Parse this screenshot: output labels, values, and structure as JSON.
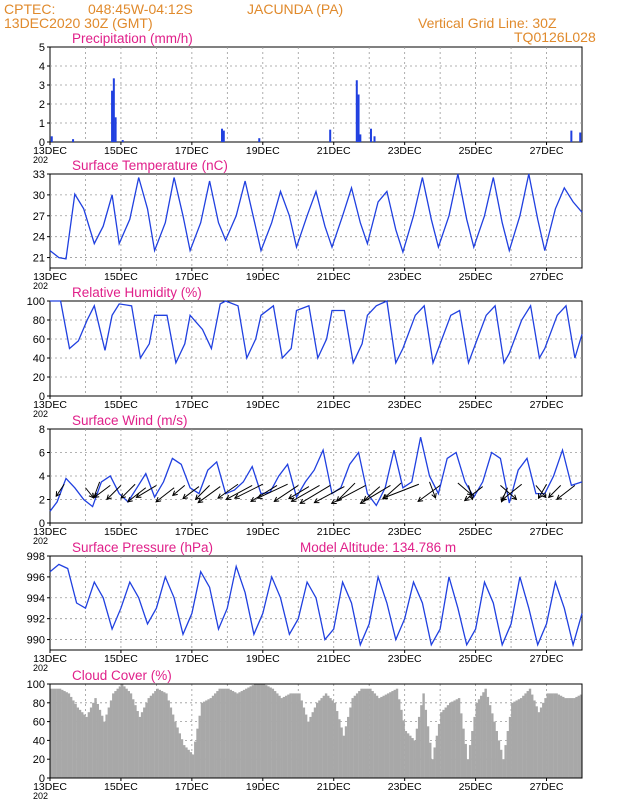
{
  "header": {
    "source": "CPTEC:",
    "coords": "048:45W-04:12S",
    "location": "JACUNDA (PA)",
    "run": "13DEC2020 30Z (GMT)",
    "grid_line": "Vertical Grid Line: 30Z",
    "code": "TQ0126L028"
  },
  "colors": {
    "header": "#e08a2c",
    "title": "#e0208a",
    "line": "#2040e0",
    "bar": "#2040e0",
    "cloud": "#a8a8a8"
  },
  "x_ticks": [
    "13DEC",
    "15DEC",
    "17DEC",
    "19DEC",
    "21DEC",
    "23DEC",
    "25DEC",
    "27DEC"
  ],
  "x_range_days": [
    13,
    28
  ],
  "chart_data": [
    {
      "type": "bar",
      "title": "Precipitation (mm/h)",
      "ylim": [
        0,
        5
      ],
      "yticks": [
        0,
        1,
        2,
        3,
        4,
        5
      ],
      "x": [
        13.05,
        13.65,
        14.75,
        14.8,
        14.85,
        15.05,
        17.85,
        17.9,
        18.9,
        20.9,
        21.65,
        21.7,
        21.75,
        22.05,
        22.15,
        27.7,
        27.95
      ],
      "values": [
        0.3,
        0.15,
        2.7,
        3.35,
        1.3,
        0.1,
        0.7,
        0.6,
        0.2,
        0.65,
        3.25,
        2.5,
        0.4,
        0.7,
        0.3,
        0.6,
        0.5
      ]
    },
    {
      "type": "line",
      "title": "Surface Temperature (nC)",
      "ylim": [
        19.5,
        33
      ],
      "yticks": [
        21,
        24,
        27,
        30,
        33
      ],
      "x": [
        13.0,
        13.25,
        13.45,
        13.7,
        13.95,
        14.25,
        14.5,
        14.75,
        14.95,
        15.25,
        15.5,
        15.75,
        15.95,
        16.25,
        16.5,
        16.75,
        16.95,
        17.25,
        17.5,
        17.75,
        17.95,
        18.25,
        18.5,
        18.75,
        18.95,
        19.25,
        19.5,
        19.75,
        19.95,
        20.25,
        20.5,
        20.75,
        20.95,
        21.25,
        21.5,
        21.75,
        21.95,
        22.25,
        22.5,
        22.75,
        22.95,
        23.25,
        23.5,
        23.75,
        23.95,
        24.25,
        24.5,
        24.75,
        24.95,
        25.25,
        25.5,
        25.75,
        25.95,
        26.25,
        26.5,
        26.75,
        26.95,
        27.25,
        27.5,
        27.75,
        28.0
      ],
      "values": [
        22.0,
        21.0,
        20.8,
        30.1,
        28.0,
        23.0,
        25.5,
        30.0,
        23.0,
        26.5,
        32.5,
        28.0,
        22.0,
        26.0,
        32.5,
        27.0,
        22.0,
        26.0,
        32.0,
        26.0,
        23.5,
        27.0,
        32.0,
        26.5,
        22.0,
        26.0,
        30.5,
        27.0,
        22.5,
        27.0,
        30.5,
        25.5,
        22.5,
        27.0,
        31.0,
        26.0,
        23.0,
        29.0,
        30.5,
        25.0,
        21.8,
        27.0,
        32.5,
        26.5,
        22.5,
        27.0,
        33.0,
        26.5,
        22.5,
        27.0,
        32.5,
        26.0,
        22.0,
        27.0,
        33.0,
        26.5,
        22.0,
        28.0,
        31.0,
        29.0,
        27.5
      ]
    },
    {
      "type": "line",
      "title": "Relative Humidity (%)",
      "ylim": [
        0,
        100
      ],
      "yticks": [
        0,
        20,
        40,
        60,
        80,
        100
      ],
      "x": [
        13.0,
        13.3,
        13.55,
        13.8,
        14.05,
        14.25,
        14.55,
        14.75,
        14.95,
        15.3,
        15.55,
        15.8,
        15.95,
        16.3,
        16.55,
        16.8,
        16.95,
        17.3,
        17.55,
        17.8,
        17.95,
        18.3,
        18.55,
        18.8,
        18.95,
        19.3,
        19.55,
        19.8,
        19.95,
        20.3,
        20.55,
        20.8,
        20.95,
        21.3,
        21.55,
        21.8,
        21.95,
        22.2,
        22.5,
        22.75,
        22.95,
        23.3,
        23.55,
        23.8,
        23.95,
        24.3,
        24.55,
        24.8,
        24.95,
        25.3,
        25.55,
        25.8,
        25.95,
        26.3,
        26.55,
        26.8,
        26.95,
        27.3,
        27.55,
        27.8,
        28.0
      ],
      "values": [
        100,
        100,
        50,
        58,
        80,
        95,
        48,
        85,
        97,
        95,
        40,
        55,
        85,
        85,
        35,
        55,
        85,
        70,
        50,
        97,
        100,
        95,
        40,
        60,
        85,
        95,
        40,
        50,
        90,
        95,
        40,
        60,
        90,
        90,
        35,
        55,
        85,
        95,
        100,
        35,
        50,
        85,
        95,
        35,
        50,
        85,
        90,
        35,
        50,
        85,
        95,
        35,
        45,
        80,
        95,
        40,
        50,
        85,
        95,
        40,
        65
      ]
    },
    {
      "type": "line",
      "title": "Surface Wind (m/s)",
      "ylim": [
        0,
        8
      ],
      "yticks": [
        0,
        2,
        4,
        6,
        8
      ],
      "x": [
        13.0,
        13.2,
        13.45,
        13.7,
        13.95,
        14.2,
        14.45,
        14.7,
        14.95,
        15.2,
        15.45,
        15.7,
        15.95,
        16.2,
        16.45,
        16.7,
        16.95,
        17.2,
        17.45,
        17.7,
        17.95,
        18.2,
        18.45,
        18.7,
        18.95,
        19.2,
        19.45,
        19.7,
        19.95,
        20.2,
        20.45,
        20.7,
        20.95,
        21.2,
        21.45,
        21.7,
        21.95,
        22.2,
        22.45,
        22.7,
        22.95,
        23.2,
        23.45,
        23.7,
        23.95,
        24.2,
        24.45,
        24.7,
        24.95,
        25.2,
        25.45,
        25.7,
        25.95,
        26.2,
        26.45,
        26.7,
        26.95,
        27.2,
        27.45,
        27.7,
        28.0
      ],
      "values": [
        1.0,
        1.8,
        3.8,
        3.0,
        2.0,
        1.4,
        3.5,
        4.0,
        2.5,
        1.8,
        3.0,
        4.2,
        2.2,
        3.5,
        5.5,
        5.0,
        3.0,
        2.5,
        4.5,
        5.2,
        2.5,
        2.8,
        3.5,
        4.8,
        2.5,
        2.6,
        4.0,
        5.0,
        2.2,
        3.5,
        4.5,
        6.2,
        2.5,
        3.0,
        5.0,
        6.0,
        2.5,
        1.5,
        3.0,
        6.2,
        3.0,
        3.5,
        7.3,
        4.0,
        2.5,
        5.5,
        6.0,
        3.5,
        2.2,
        3.5,
        6.0,
        5.5,
        1.7,
        4.5,
        5.5,
        2.5,
        2.5,
        4.0,
        6.2,
        3.2,
        3.5
      ]
    },
    {
      "type": "line",
      "title": "Surface Pressure (hPa)",
      "annotation": "Model Altitude: 134.786 m",
      "ylim": [
        989,
        998
      ],
      "yticks": [
        990,
        992,
        994,
        996,
        998
      ],
      "x": [
        13.0,
        13.25,
        13.5,
        13.75,
        14.0,
        14.25,
        14.5,
        14.75,
        15.0,
        15.25,
        15.5,
        15.75,
        16.0,
        16.25,
        16.5,
        16.75,
        17.0,
        17.25,
        17.5,
        17.75,
        18.0,
        18.25,
        18.5,
        18.75,
        19.0,
        19.25,
        19.5,
        19.75,
        20.0,
        20.25,
        20.5,
        20.75,
        21.0,
        21.25,
        21.5,
        21.75,
        22.0,
        22.25,
        22.5,
        22.75,
        23.0,
        23.25,
        23.5,
        23.75,
        24.0,
        24.25,
        24.5,
        24.75,
        25.0,
        25.25,
        25.5,
        25.75,
        26.0,
        26.25,
        26.5,
        26.75,
        27.0,
        27.25,
        27.5,
        27.75,
        28.0
      ],
      "values": [
        996.5,
        997.2,
        996.8,
        993.5,
        993.0,
        995.5,
        994.0,
        991.0,
        993.0,
        995.5,
        994.0,
        991.5,
        993.0,
        996.0,
        994.0,
        990.5,
        992.5,
        996.5,
        995.0,
        991.0,
        993.0,
        997.0,
        994.5,
        990.5,
        992.5,
        996.0,
        994.0,
        990.5,
        992.0,
        995.5,
        994.0,
        990.0,
        991.0,
        995.5,
        993.5,
        989.5,
        991.5,
        996.0,
        993.5,
        990.0,
        992.0,
        995.5,
        993.5,
        989.5,
        991.0,
        996.0,
        993.0,
        989.5,
        991.0,
        995.5,
        993.5,
        989.5,
        991.5,
        996.0,
        993.0,
        989.5,
        991.5,
        995.5,
        993.0,
        989.5,
        992.5
      ]
    },
    {
      "type": "area",
      "title": "Cloud Cover (%)",
      "ylim": [
        0,
        100
      ],
      "yticks": [
        0,
        20,
        40,
        60,
        80,
        100
      ],
      "x": [
        13.0,
        13.25,
        13.5,
        13.75,
        14.0,
        14.25,
        14.5,
        14.75,
        15.0,
        15.25,
        15.5,
        15.75,
        16.0,
        16.25,
        16.5,
        16.75,
        17.0,
        17.25,
        17.5,
        17.75,
        18.0,
        18.25,
        18.5,
        18.75,
        19.0,
        19.25,
        19.5,
        19.75,
        20.0,
        20.25,
        20.5,
        20.75,
        21.0,
        21.25,
        21.5,
        21.75,
        22.0,
        22.25,
        22.5,
        22.75,
        23.0,
        23.25,
        23.5,
        23.75,
        24.0,
        24.25,
        24.5,
        24.75,
        25.0,
        25.25,
        25.5,
        25.75,
        26.0,
        26.25,
        26.5,
        26.75,
        27.0,
        27.25,
        27.5,
        27.75,
        28.0
      ],
      "values": [
        95,
        95,
        90,
        75,
        65,
        85,
        60,
        90,
        100,
        90,
        65,
        85,
        95,
        90,
        60,
        35,
        25,
        80,
        85,
        95,
        95,
        90,
        95,
        100,
        100,
        95,
        85,
        90,
        90,
        60,
        80,
        90,
        80,
        45,
        85,
        95,
        95,
        85,
        90,
        95,
        50,
        40,
        90,
        20,
        70,
        80,
        85,
        20,
        80,
        95,
        60,
        20,
        80,
        85,
        95,
        70,
        90,
        90,
        85,
        85,
        90
      ]
    }
  ],
  "wind_vectors": {
    "x": [
      13.4,
      14.0,
      14.4,
      14.7,
      15.0,
      15.4,
      15.7,
      16.0,
      16.5,
      16.8,
      17.2,
      17.5,
      17.8,
      18.3,
      18.7,
      19.0,
      19.4,
      19.7,
      20.0,
      20.3,
      20.6,
      20.9,
      21.3,
      21.6,
      21.9,
      22.3,
      22.6,
      22.9,
      23.4,
      23.7,
      24.0,
      24.5,
      24.8,
      25.2,
      25.7,
      25.9,
      26.3,
      26.7,
      27.0,
      27.4,
      27.8
    ],
    "y": [
      3.3,
      3.0,
      3.5,
      3.2,
      3.2,
      3.3,
      3.0,
      3.2,
      3.0,
      3.2,
      3.1,
      3.2,
      3.1,
      3.3,
      3.2,
      3.3,
      3.2,
      3.3,
      3.2,
      3.1,
      3.2,
      3.2,
      3.1,
      3.4,
      3.2,
      3.1,
      3.2,
      3.4,
      3.3,
      3.5,
      3.2,
      3.4,
      3.2,
      3.1,
      3.2,
      3.0,
      3.3,
      3.2,
      3.3,
      3.2,
      3.2
    ],
    "u": [
      -8,
      8,
      -6,
      -16,
      -14,
      -14,
      -18,
      -20,
      -18,
      -12,
      -16,
      -14,
      -22,
      -20,
      -26,
      -28,
      -26,
      -30,
      -24,
      -20,
      -28,
      -30,
      -30,
      -18,
      -34,
      -16,
      -30,
      -18,
      -36,
      6,
      -22,
      14,
      4,
      -18,
      16,
      -6,
      -20,
      10,
      -8,
      -12,
      -18
    ],
    "v": [
      12,
      10,
      16,
      12,
      14,
      14,
      14,
      12,
      14,
      10,
      12,
      14,
      16,
      14,
      14,
      14,
      16,
      14,
      16,
      12,
      16,
      18,
      16,
      18,
      18,
      14,
      18,
      16,
      14,
      16,
      16,
      12,
      14,
      14,
      14,
      14,
      16,
      12,
      14,
      12,
      14
    ]
  },
  "panels": [
    {
      "top": 47,
      "bottom": 142,
      "tick_label_suffix": ""
    },
    {
      "top": 174,
      "bottom": 268,
      "tick_label_suffix": ""
    },
    {
      "top": 301,
      "bottom": 396,
      "tick_label_suffix": ""
    },
    {
      "top": 429,
      "bottom": 523,
      "tick_label_suffix": ""
    },
    {
      "top": 556,
      "bottom": 650,
      "tick_label_suffix": ""
    },
    {
      "top": 684,
      "bottom": 778,
      "tick_label_suffix": ""
    }
  ],
  "year_fragment": "202"
}
